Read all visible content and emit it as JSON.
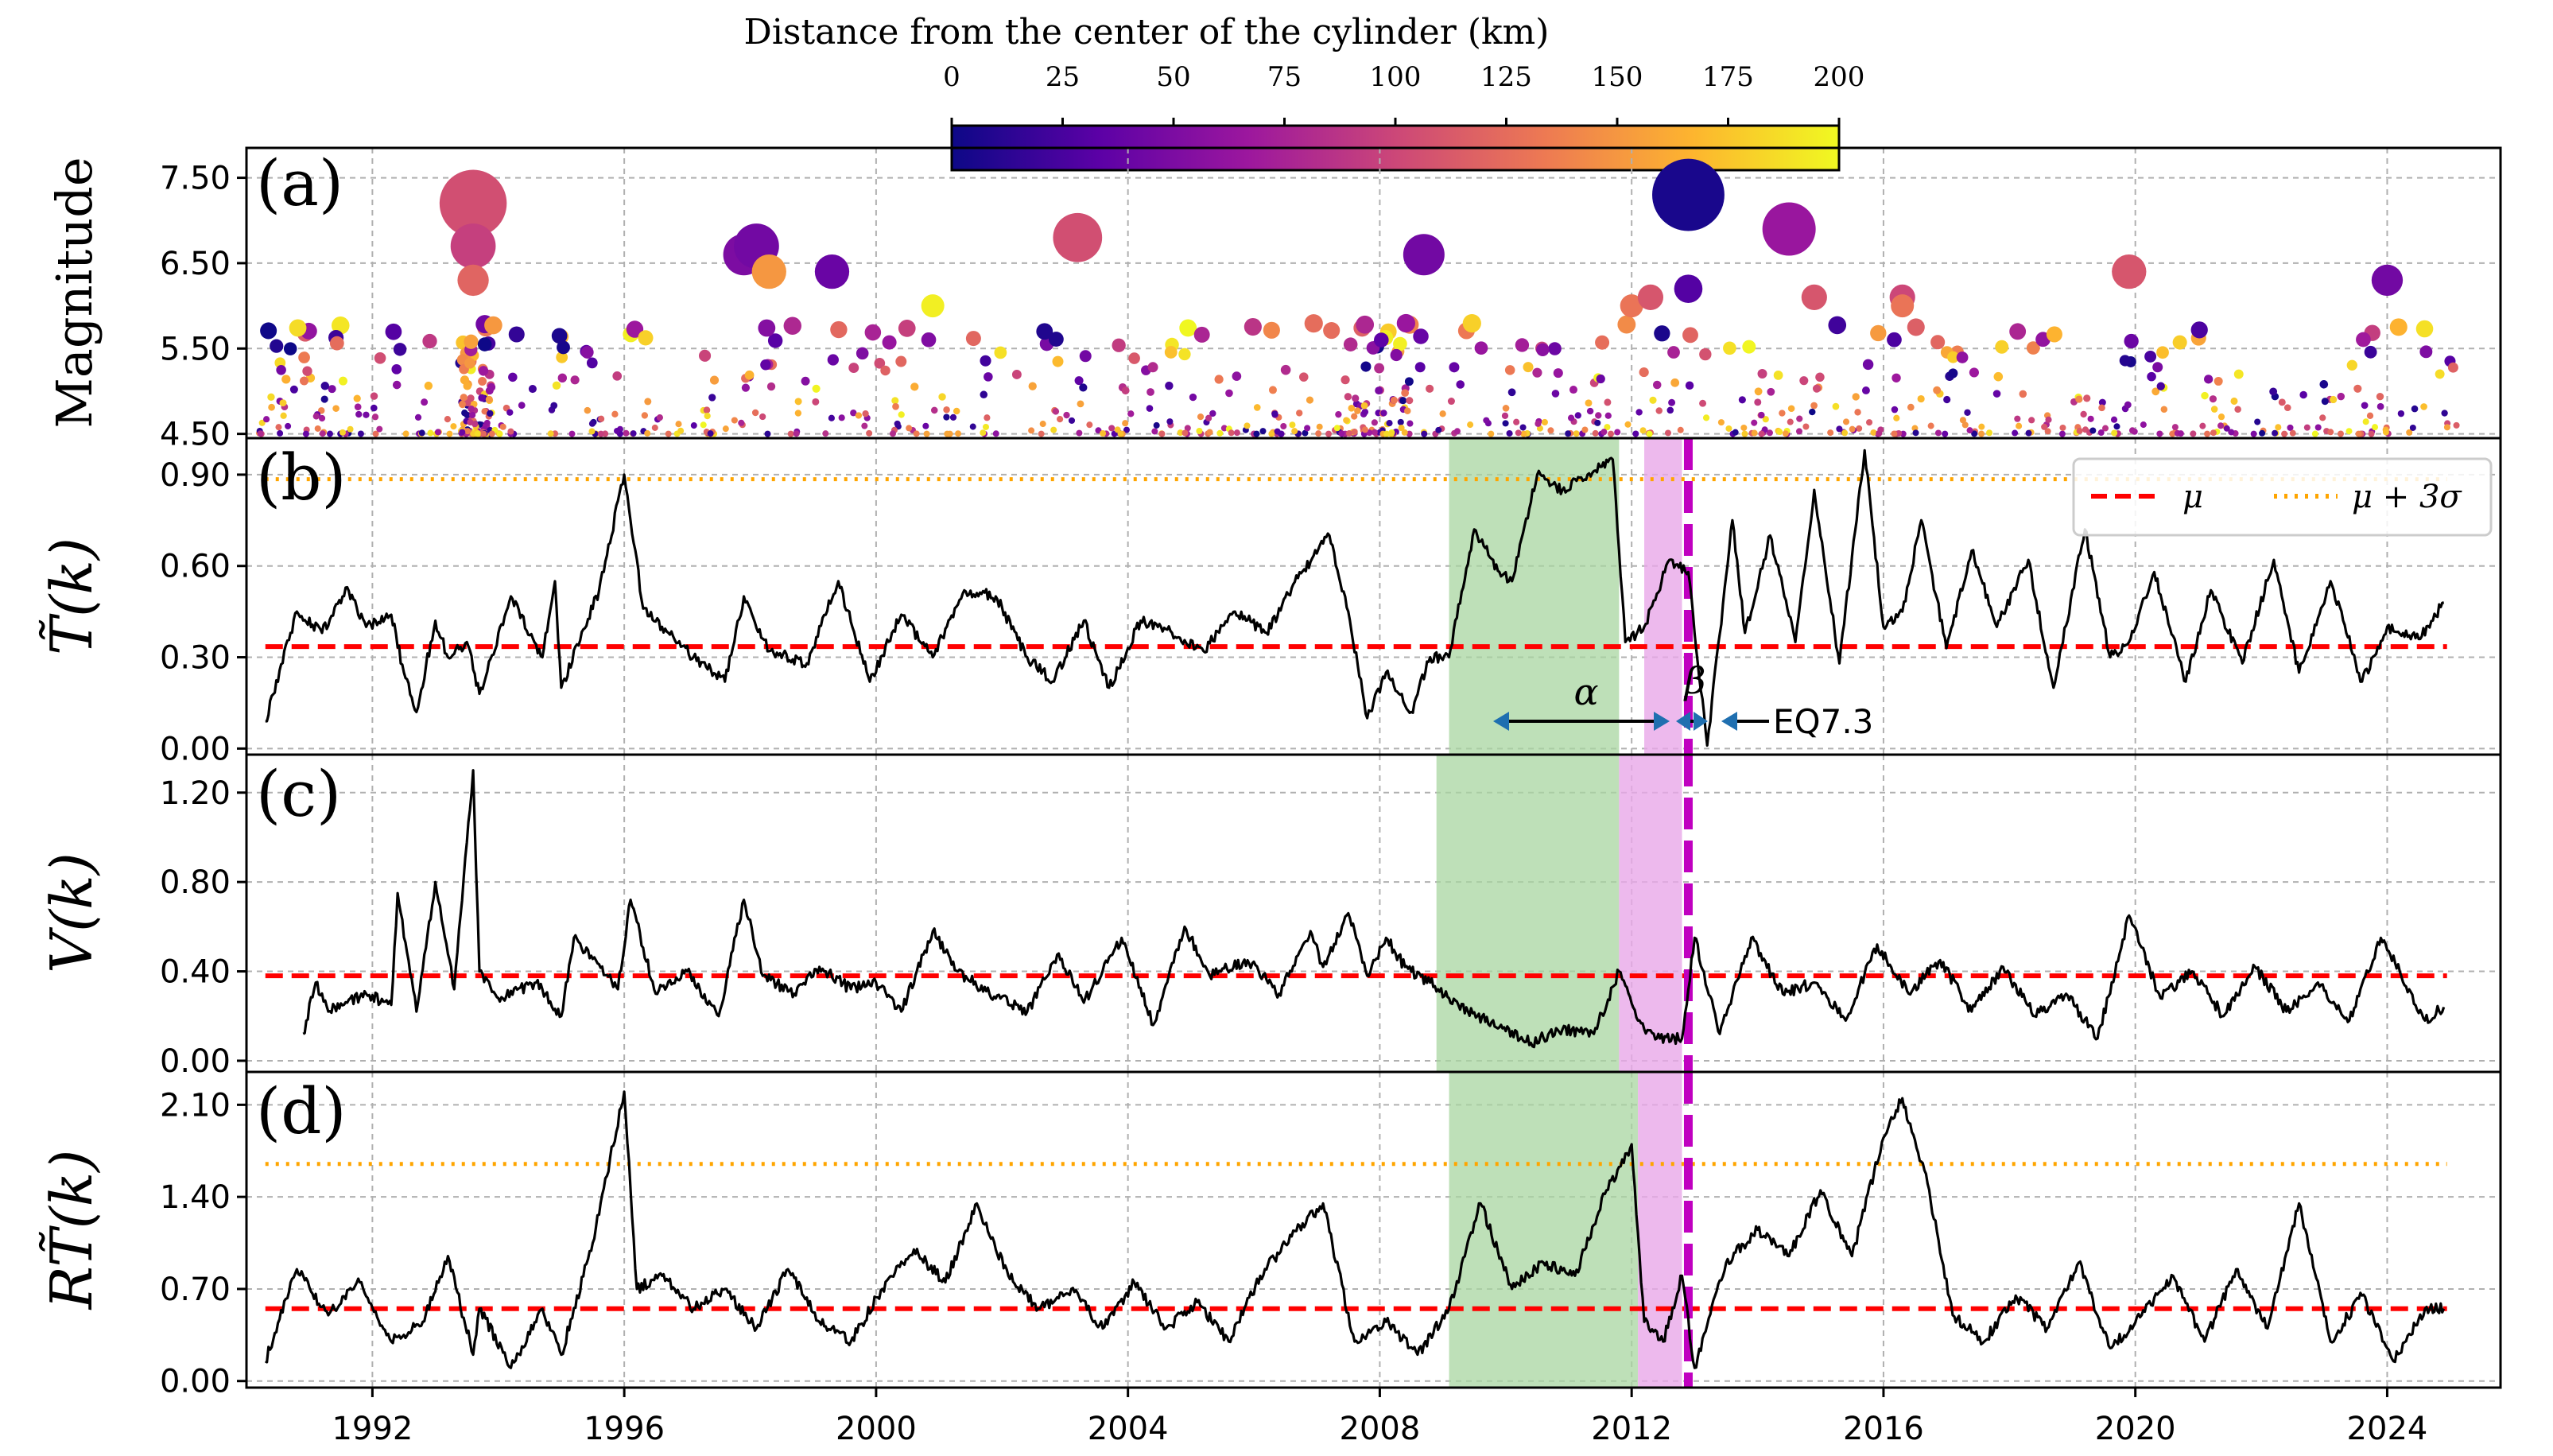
{
  "figure": {
    "colorbar": {
      "title": "Distance from the center of the cylinder (km)",
      "ticks": [
        "0",
        "25",
        "50",
        "75",
        "100",
        "125",
        "150",
        "175",
        "200"
      ],
      "colormap": "plasma",
      "range": [
        0,
        200
      ],
      "stops": [
        "#0d0887",
        "#5c01a6",
        "#9c179e",
        "#cc4778",
        "#ed7953",
        "#fdb42f",
        "#f0f921"
      ]
    },
    "x_ticks": [
      "1992",
      "1996",
      "2000",
      "2004",
      "2008",
      "2012",
      "2016",
      "2020",
      "2024"
    ],
    "panels": {
      "a": {
        "label": "(a)",
        "ylabel": "Magnitude",
        "y_ticks": [
          "4.50",
          "5.50",
          "6.50",
          "7.50"
        ]
      },
      "b": {
        "label": "(b)",
        "ylabel": "T̃(k)",
        "y_ticks": [
          "0.00",
          "0.30",
          "0.60",
          "0.90"
        ],
        "legend": {
          "mu": "μ",
          "mu3s": "μ + 3σ"
        },
        "annotations": {
          "alpha": "α",
          "beta": "β",
          "eq": "EQ7.3"
        }
      },
      "c": {
        "label": "(c)",
        "ylabel": "V(k)",
        "y_ticks": [
          "0.00",
          "0.40",
          "0.80",
          "1.20"
        ]
      },
      "d": {
        "label": "(d)",
        "ylabel": "RT̃(k)",
        "y_ticks": [
          "0.00",
          "0.70",
          "1.40",
          "2.10"
        ]
      }
    },
    "colors": {
      "mean_line": "#ff0000",
      "threshold_line": "#ffa500",
      "alpha_shade": "#a8d5a0",
      "beta_shade": "#e8a8e8",
      "event_line": "#c000c0",
      "series": "#000000",
      "arrow_head": "#1f6fb0"
    }
  },
  "chart_data": [
    {
      "type": "scatter",
      "title": "(a)",
      "xlabel": "",
      "ylabel": "Magnitude",
      "xlim": [
        1990,
        2025.8
      ],
      "ylim": [
        4.45,
        7.85
      ],
      "color_variable": "Distance from the center of the cylinder (km)",
      "large_events": [
        {
          "t": 1993.6,
          "mag": 7.2,
          "dist": 105
        },
        {
          "t": 1993.6,
          "mag": 6.7,
          "dist": 95
        },
        {
          "t": 1993.6,
          "mag": 6.3,
          "dist": 120
        },
        {
          "t": 1997.9,
          "mag": 6.6,
          "dist": 50
        },
        {
          "t": 1998.1,
          "mag": 6.7,
          "dist": 45
        },
        {
          "t": 1998.3,
          "mag": 6.4,
          "dist": 150
        },
        {
          "t": 1999.3,
          "mag": 6.4,
          "dist": 40
        },
        {
          "t": 2000.9,
          "mag": 6.0,
          "dist": 195
        },
        {
          "t": 2003.2,
          "mag": 6.8,
          "dist": 105
        },
        {
          "t": 2008.7,
          "mag": 6.6,
          "dist": 45
        },
        {
          "t": 2012.0,
          "mag": 6.0,
          "dist": 130
        },
        {
          "t": 2012.3,
          "mag": 6.1,
          "dist": 110
        },
        {
          "t": 2012.9,
          "mag": 7.3,
          "dist": 5
        },
        {
          "t": 2012.9,
          "mag": 6.2,
          "dist": 30
        },
        {
          "t": 2014.5,
          "mag": 6.9,
          "dist": 65
        },
        {
          "t": 2014.9,
          "mag": 6.1,
          "dist": 110
        },
        {
          "t": 2016.3,
          "mag": 6.1,
          "dist": 100
        },
        {
          "t": 2016.3,
          "mag": 6.0,
          "dist": 130
        },
        {
          "t": 2019.9,
          "mag": 6.4,
          "dist": 110
        },
        {
          "t": 2024.0,
          "mag": 6.3,
          "dist": 45
        }
      ],
      "background_seismicity": "several hundred M4.5–5.8 events distributed 1990–2025"
    },
    {
      "type": "line",
      "title": "(b)",
      "ylabel": "T̃(k)",
      "xlim": [
        1990,
        2025.8
      ],
      "ylim": [
        -0.02,
        1.02
      ],
      "mean": 0.335,
      "mean_plus_3sigma": 0.885,
      "alpha_window": [
        2009.1,
        2011.8
      ],
      "beta_window": [
        2012.2,
        2012.8
      ],
      "event_time": 2012.9,
      "series": [
        {
          "name": "T̃(k)",
          "t": [
            1990.3,
            1990.8,
            1991.2,
            1991.6,
            1991.9,
            1992.3,
            1992.5,
            1992.7,
            1993.0,
            1993.2,
            1993.5,
            1993.7,
            1994.2,
            1994.7,
            1994.9,
            1995.0,
            1995.6,
            1996.0,
            1996.3,
            1996.6,
            1997.1,
            1997.6,
            1997.9,
            1998.3,
            1998.9,
            1999.4,
            1999.9,
            2000.4,
            2000.9,
            2001.4,
            2001.9,
            2002.4,
            2002.8,
            2003.3,
            2003.7,
            2004.2,
            2004.7,
            2005.2,
            2005.7,
            2006.2,
            2006.7,
            2007.2,
            2007.5,
            2007.8,
            2008.1,
            2008.5,
            2008.8,
            2009.1,
            2009.5,
            2009.9,
            2010.1,
            2010.5,
            2010.9,
            2011.3,
            2011.7,
            2011.9,
            2012.2,
            2012.6,
            2012.9,
            2013.2,
            2013.6,
            2013.8,
            2014.2,
            2014.6,
            2014.9,
            2015.3,
            2015.7,
            2016.0,
            2016.3,
            2016.6,
            2017.0,
            2017.4,
            2017.8,
            2018.3,
            2018.7,
            2019.2,
            2019.6,
            2019.9,
            2020.3,
            2020.8,
            2021.2,
            2021.7,
            2022.2,
            2022.6,
            2023.1,
            2023.6,
            2024.0,
            2024.5,
            2024.9
          ],
          "v": [
            0.09,
            0.45,
            0.38,
            0.53,
            0.4,
            0.44,
            0.25,
            0.12,
            0.42,
            0.3,
            0.35,
            0.18,
            0.5,
            0.3,
            0.55,
            0.2,
            0.52,
            0.9,
            0.46,
            0.4,
            0.3,
            0.22,
            0.5,
            0.32,
            0.28,
            0.55,
            0.22,
            0.44,
            0.3,
            0.52,
            0.5,
            0.3,
            0.22,
            0.42,
            0.2,
            0.42,
            0.38,
            0.32,
            0.45,
            0.38,
            0.56,
            0.7,
            0.45,
            0.1,
            0.25,
            0.12,
            0.3,
            0.3,
            0.72,
            0.58,
            0.55,
            0.9,
            0.85,
            0.9,
            0.95,
            0.35,
            0.4,
            0.62,
            0.58,
            0.01,
            0.75,
            0.38,
            0.7,
            0.35,
            0.85,
            0.28,
            0.98,
            0.4,
            0.45,
            0.75,
            0.33,
            0.65,
            0.4,
            0.62,
            0.2,
            0.72,
            0.3,
            0.35,
            0.58,
            0.22,
            0.52,
            0.28,
            0.62,
            0.25,
            0.55,
            0.22,
            0.4,
            0.36,
            0.48
          ]
        }
      ]
    },
    {
      "type": "line",
      "title": "(c)",
      "ylabel": "V(k)",
      "xlim": [
        1990,
        2025.8
      ],
      "ylim": [
        -0.05,
        1.37
      ],
      "mean": 0.38,
      "alpha_window": [
        2008.9,
        2011.8
      ],
      "beta_window": [
        2011.8,
        2012.8
      ],
      "event_time": 2012.9,
      "series": [
        {
          "name": "V(k)",
          "t": [
            1990.9,
            1991.1,
            1991.3,
            1991.9,
            1992.3,
            1992.4,
            1992.7,
            1993.0,
            1993.3,
            1993.6,
            1993.7,
            1994.0,
            1994.6,
            1995.0,
            1995.2,
            1995.9,
            1996.1,
            1996.5,
            1997.0,
            1997.5,
            1997.9,
            1998.2,
            1998.7,
            1999.1,
            1999.6,
            2000.0,
            2000.4,
            2000.9,
            2001.3,
            2001.8,
            2002.4,
            2002.9,
            2003.3,
            2003.9,
            2004.4,
            2004.9,
            2005.3,
            2005.9,
            2006.4,
            2006.9,
            2007.1,
            2007.5,
            2007.8,
            2008.1,
            2008.4,
            2008.8,
            2009.1,
            2009.4,
            2009.9,
            2010.4,
            2010.9,
            2011.4,
            2011.8,
            2012.1,
            2012.4,
            2012.8,
            2013.0,
            2013.4,
            2013.9,
            2014.4,
            2014.9,
            2015.4,
            2015.9,
            2016.4,
            2016.9,
            2017.4,
            2017.9,
            2018.4,
            2018.9,
            2019.4,
            2019.9,
            2020.4,
            2020.9,
            2021.4,
            2021.9,
            2022.4,
            2022.9,
            2023.4,
            2023.9,
            2024.2,
            2024.6,
            2024.9
          ],
          "v": [
            0.12,
            0.35,
            0.22,
            0.3,
            0.25,
            0.75,
            0.22,
            0.8,
            0.32,
            1.3,
            0.4,
            0.28,
            0.35,
            0.2,
            0.55,
            0.32,
            0.72,
            0.3,
            0.4,
            0.2,
            0.72,
            0.38,
            0.3,
            0.42,
            0.32,
            0.35,
            0.22,
            0.58,
            0.4,
            0.3,
            0.22,
            0.48,
            0.26,
            0.55,
            0.16,
            0.6,
            0.38,
            0.45,
            0.3,
            0.58,
            0.42,
            0.66,
            0.38,
            0.55,
            0.42,
            0.35,
            0.28,
            0.22,
            0.15,
            0.08,
            0.14,
            0.12,
            0.4,
            0.18,
            0.1,
            0.1,
            0.55,
            0.12,
            0.55,
            0.3,
            0.35,
            0.18,
            0.52,
            0.3,
            0.45,
            0.22,
            0.42,
            0.2,
            0.3,
            0.1,
            0.65,
            0.28,
            0.4,
            0.2,
            0.42,
            0.22,
            0.35,
            0.18,
            0.55,
            0.4,
            0.18,
            0.24
          ]
        }
      ]
    },
    {
      "type": "line",
      "title": "(d)",
      "ylabel": "RT̃(k)",
      "xlim": [
        1990,
        2025.8
      ],
      "ylim": [
        -0.05,
        2.35
      ],
      "mean": 0.55,
      "mean_plus_3sigma": 1.65,
      "alpha_window": [
        2009.1,
        2012.1
      ],
      "beta_window": [
        2012.1,
        2012.8
      ],
      "event_time": 2012.9,
      "series": [
        {
          "name": "RT̃(k)",
          "t": [
            1990.3,
            1990.8,
            1991.3,
            1991.8,
            1992.3,
            1992.8,
            1993.2,
            1993.6,
            1993.7,
            1994.2,
            1994.7,
            1995.0,
            1995.5,
            1996.0,
            1996.2,
            1996.6,
            1997.1,
            1997.6,
            1998.1,
            1998.6,
            1999.1,
            1999.6,
            2000.1,
            2000.6,
            2001.1,
            2001.6,
            2002.1,
            2002.6,
            2003.1,
            2003.6,
            2004.1,
            2004.6,
            2005.1,
            2005.6,
            2006.1,
            2006.6,
            2007.1,
            2007.6,
            2008.1,
            2008.6,
            2009.1,
            2009.6,
            2010.1,
            2010.6,
            2011.1,
            2011.6,
            2012.0,
            2012.2,
            2012.5,
            2012.8,
            2013.0,
            2013.5,
            2014.0,
            2014.5,
            2015.0,
            2015.5,
            2016.0,
            2016.3,
            2016.7,
            2017.1,
            2017.6,
            2018.1,
            2018.6,
            2019.1,
            2019.6,
            2020.1,
            2020.6,
            2021.1,
            2021.6,
            2022.1,
            2022.6,
            2023.1,
            2023.6,
            2024.1,
            2024.6,
            2024.9
          ],
          "v": [
            0.15,
            0.85,
            0.5,
            0.75,
            0.3,
            0.45,
            0.95,
            0.2,
            0.55,
            0.1,
            0.55,
            0.2,
            1.05,
            2.2,
            0.7,
            0.8,
            0.55,
            0.7,
            0.4,
            0.85,
            0.45,
            0.3,
            0.7,
            1.0,
            0.75,
            1.35,
            0.8,
            0.55,
            0.7,
            0.4,
            0.75,
            0.4,
            0.6,
            0.3,
            0.8,
            1.1,
            1.35,
            0.3,
            0.45,
            0.2,
            0.55,
            1.35,
            0.7,
            0.9,
            0.8,
            1.45,
            1.8,
            0.45,
            0.3,
            0.8,
            0.1,
            0.9,
            1.15,
            0.95,
            1.45,
            0.95,
            1.85,
            2.15,
            1.5,
            0.5,
            0.3,
            0.65,
            0.4,
            0.9,
            0.25,
            0.5,
            0.8,
            0.3,
            0.85,
            0.4,
            1.35,
            0.3,
            0.65,
            0.15,
            0.55,
            0.55
          ]
        }
      ]
    }
  ]
}
